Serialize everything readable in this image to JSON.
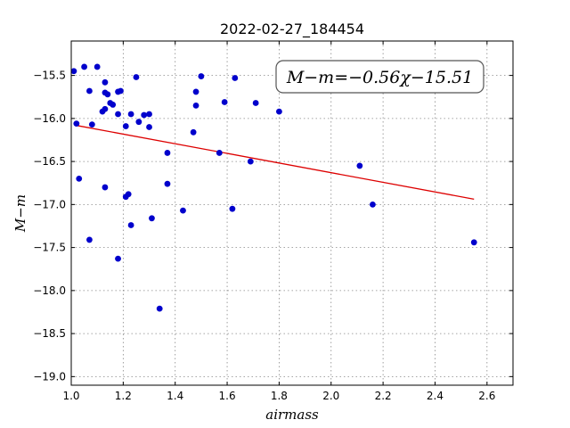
{
  "chart_data": {
    "type": "scatter",
    "title": "2022-02-27_184454",
    "xlabel": "airmass",
    "ylabel": "M−m",
    "xlim": [
      1.0,
      2.7
    ],
    "ylim": [
      -19.1,
      -15.1
    ],
    "y_inverted": true,
    "grid": true,
    "x_ticks": [
      1.0,
      1.2,
      1.4,
      1.6,
      1.8,
      2.0,
      2.2,
      2.4,
      2.6
    ],
    "x_tick_labels": [
      "1.0",
      "1.2",
      "1.4",
      "1.6",
      "1.8",
      "2.0",
      "2.2",
      "2.4",
      "2.6"
    ],
    "y_ticks": [
      -15.5,
      -16.0,
      -16.5,
      -17.0,
      -17.5,
      -18.0,
      -18.5,
      -19.0
    ],
    "y_tick_labels": [
      "−15.5",
      "−16.0",
      "−16.5",
      "−17.0",
      "−17.5",
      "−18.0",
      "−18.5",
      "−19.0"
    ],
    "annotation": "M−m=−0.56χ−15.51",
    "annotation_placement": "top-right",
    "point_color": "#0000cc",
    "fit_color": "#dd0000",
    "fit": {
      "slope": -0.56,
      "intercept": -15.51,
      "x_range": [
        1.02,
        2.55
      ]
    },
    "points": [
      [
        1.01,
        -15.45
      ],
      [
        1.05,
        -15.4
      ],
      [
        1.1,
        -15.4
      ],
      [
        1.02,
        -16.06
      ],
      [
        1.03,
        -16.7
      ],
      [
        1.07,
        -15.68
      ],
      [
        1.08,
        -16.07
      ],
      [
        1.07,
        -17.41
      ],
      [
        1.12,
        -15.92
      ],
      [
        1.13,
        -15.89
      ],
      [
        1.13,
        -15.58
      ],
      [
        1.13,
        -15.7
      ],
      [
        1.14,
        -15.72
      ],
      [
        1.13,
        -16.8
      ],
      [
        1.15,
        -15.82
      ],
      [
        1.16,
        -15.84
      ],
      [
        1.18,
        -15.69
      ],
      [
        1.19,
        -15.68
      ],
      [
        1.18,
        -15.95
      ],
      [
        1.18,
        -17.63
      ],
      [
        1.21,
        -16.09
      ],
      [
        1.21,
        -16.91
      ],
      [
        1.22,
        -16.88
      ],
      [
        1.23,
        -15.95
      ],
      [
        1.23,
        -17.24
      ],
      [
        1.25,
        -15.52
      ],
      [
        1.26,
        -16.04
      ],
      [
        1.28,
        -15.96
      ],
      [
        1.3,
        -15.95
      ],
      [
        1.3,
        -16.1
      ],
      [
        1.31,
        -17.16
      ],
      [
        1.34,
        -18.21
      ],
      [
        1.37,
        -16.4
      ],
      [
        1.37,
        -16.76
      ],
      [
        1.43,
        -17.07
      ],
      [
        1.47,
        -16.16
      ],
      [
        1.48,
        -15.69
      ],
      [
        1.48,
        -15.85
      ],
      [
        1.5,
        -15.51
      ],
      [
        1.57,
        -16.4
      ],
      [
        1.59,
        -15.81
      ],
      [
        1.62,
        -17.05
      ],
      [
        1.63,
        -15.53
      ],
      [
        1.69,
        -16.5
      ],
      [
        1.71,
        -15.82
      ],
      [
        1.8,
        -15.92
      ],
      [
        2.11,
        -16.55
      ],
      [
        2.16,
        -17.0
      ],
      [
        2.55,
        -17.44
      ]
    ]
  }
}
